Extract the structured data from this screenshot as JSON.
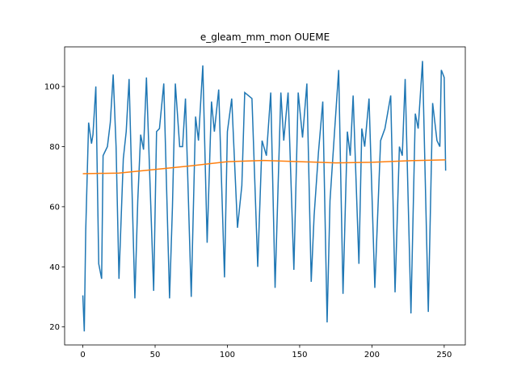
{
  "chart_data": {
    "type": "line",
    "title": "e_gleam_mm_mon OUEME",
    "xlim": [
      -12.6,
      264.6
    ],
    "ylim": [
      14.0,
      113.2
    ],
    "xticks": [
      0,
      50,
      100,
      150,
      200,
      250
    ],
    "yticks": [
      20,
      40,
      60,
      80,
      100
    ],
    "series": [
      {
        "color": "#1f77b4",
        "x": [
          0,
          1,
          2,
          4,
          6,
          7,
          9,
          11,
          13,
          14,
          17,
          19,
          21,
          23,
          25,
          28,
          30,
          32,
          36,
          38,
          40,
          42,
          44,
          49,
          51,
          53,
          56,
          60,
          62,
          64,
          67,
          69,
          71,
          75,
          78,
          80,
          83,
          86,
          89,
          91,
          94,
          98,
          100,
          103,
          107,
          110,
          112,
          117,
          121,
          124,
          127,
          130,
          133,
          137,
          139,
          142,
          146,
          149,
          152,
          155,
          158,
          160,
          163,
          166,
          169,
          171,
          174,
          177,
          180,
          183,
          185,
          187,
          191,
          193,
          195,
          198,
          202,
          206,
          209,
          213,
          216,
          219,
          221,
          223,
          227,
          230,
          232,
          235,
          239,
          242,
          245,
          247,
          248,
          250,
          251
        ],
        "values": [
          30.5,
          18.5,
          52,
          88,
          81,
          84,
          100,
          41,
          36,
          77,
          80,
          88,
          104,
          80,
          36,
          76,
          85,
          102.5,
          29.5,
          62,
          84,
          79,
          103,
          32,
          85,
          86,
          101,
          29.5,
          60,
          101,
          80,
          80,
          96,
          30,
          90,
          82,
          107,
          48,
          95,
          85,
          99,
          36.5,
          85,
          96,
          53,
          67,
          98,
          96,
          40,
          82,
          77,
          98,
          33,
          98,
          82,
          98,
          39,
          98,
          83,
          101,
          35,
          57,
          78,
          95,
          21.5,
          62,
          84,
          105.5,
          31,
          85,
          77,
          97,
          41,
          86,
          80,
          96,
          33,
          82,
          86,
          97,
          31.5,
          80,
          77,
          102.5,
          24.5,
          91,
          86,
          108.5,
          25,
          94.5,
          82,
          80,
          105.5,
          103,
          72
        ]
      },
      {
        "color": "#ff7f0e",
        "x": [
          0,
          25,
          50,
          75,
          100,
          125,
          150,
          175,
          200,
          225,
          251
        ],
        "values": [
          71,
          71.2,
          72.4,
          73.6,
          75,
          75.4,
          75,
          74.6,
          74.8,
          75.3,
          75.6
        ]
      }
    ]
  }
}
